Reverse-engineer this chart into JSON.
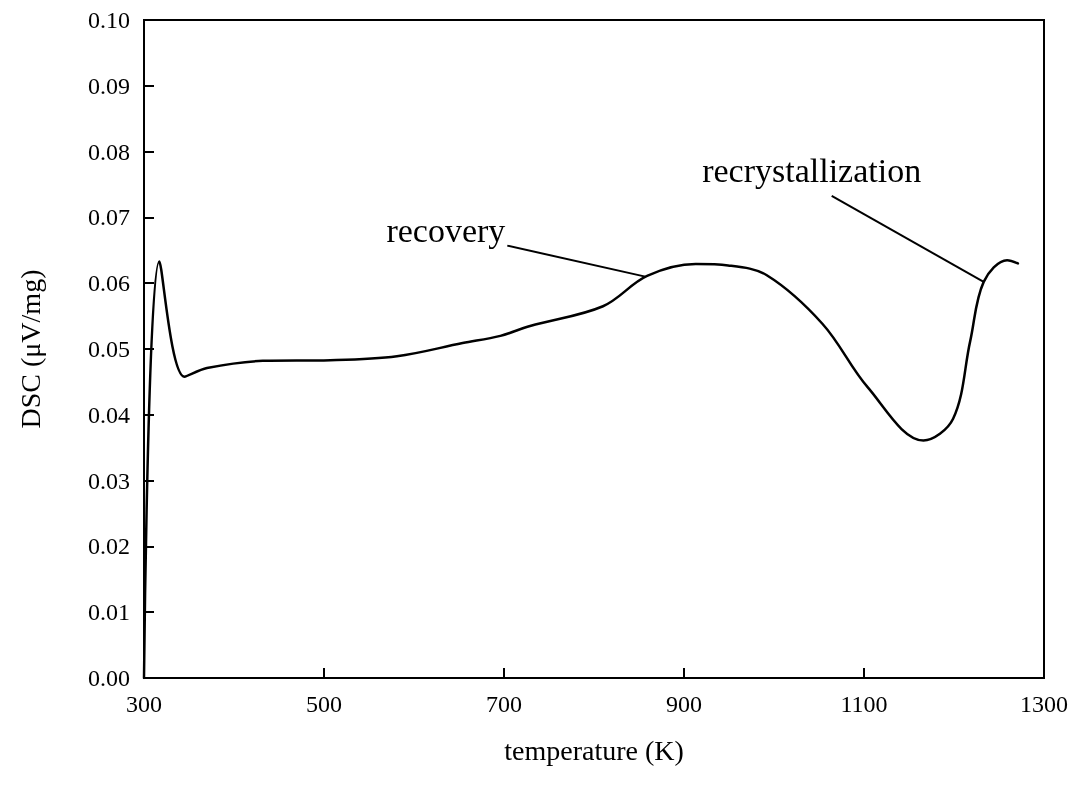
{
  "chart_data": {
    "type": "line",
    "xlabel": "temperature (K)",
    "ylabel": "DSC (μV/mg)",
    "x": [
      300,
      317,
      345,
      370,
      432,
      507,
      581,
      654,
      696,
      729,
      810,
      859,
      913,
      949,
      992,
      1054,
      1104,
      1166,
      1199,
      1218,
      1233,
      1259,
      1271
    ],
    "series": [
      {
        "color": "#000000",
        "values": [
          0.0,
          0.0633,
          0.0458,
          0.0471,
          0.0482,
          0.0483,
          0.0489,
          0.0509,
          0.052,
          0.0535,
          0.0565,
          0.0611,
          0.0629,
          0.0627,
          0.0612,
          0.0538,
          0.0442,
          0.0361,
          0.0394,
          0.0512,
          0.0602,
          0.0635,
          0.063
        ]
      }
    ],
    "xlim": [
      300,
      1300
    ],
    "xticks": [
      300,
      500,
      700,
      900,
      1100,
      1300
    ],
    "ylim": [
      0,
      0.1
    ],
    "yticks": [
      {
        "value": 0,
        "label": "0.00"
      },
      {
        "value": 0.01,
        "label": "0.01"
      },
      {
        "value": 0.02,
        "label": "0.02"
      },
      {
        "value": 0.03,
        "label": "0.03"
      },
      {
        "value": 0.04,
        "label": "0.04"
      },
      {
        "value": 0.05,
        "label": "0.05"
      },
      {
        "value": 0.06,
        "label": "0.06"
      },
      {
        "value": 0.07,
        "label": "0.07"
      },
      {
        "value": 0.08,
        "label": "0.08"
      },
      {
        "value": 0.09,
        "label": "0.09"
      },
      {
        "value": 0.1,
        "label": "0.10"
      }
    ],
    "annotations": [
      {
        "text": "recovery",
        "x": 857,
        "y": 0.061
      },
      {
        "text": "recrystallization",
        "x": 1233,
        "y": 0.0602
      }
    ],
    "marker": "none",
    "line_style": "solid",
    "grid": false
  }
}
